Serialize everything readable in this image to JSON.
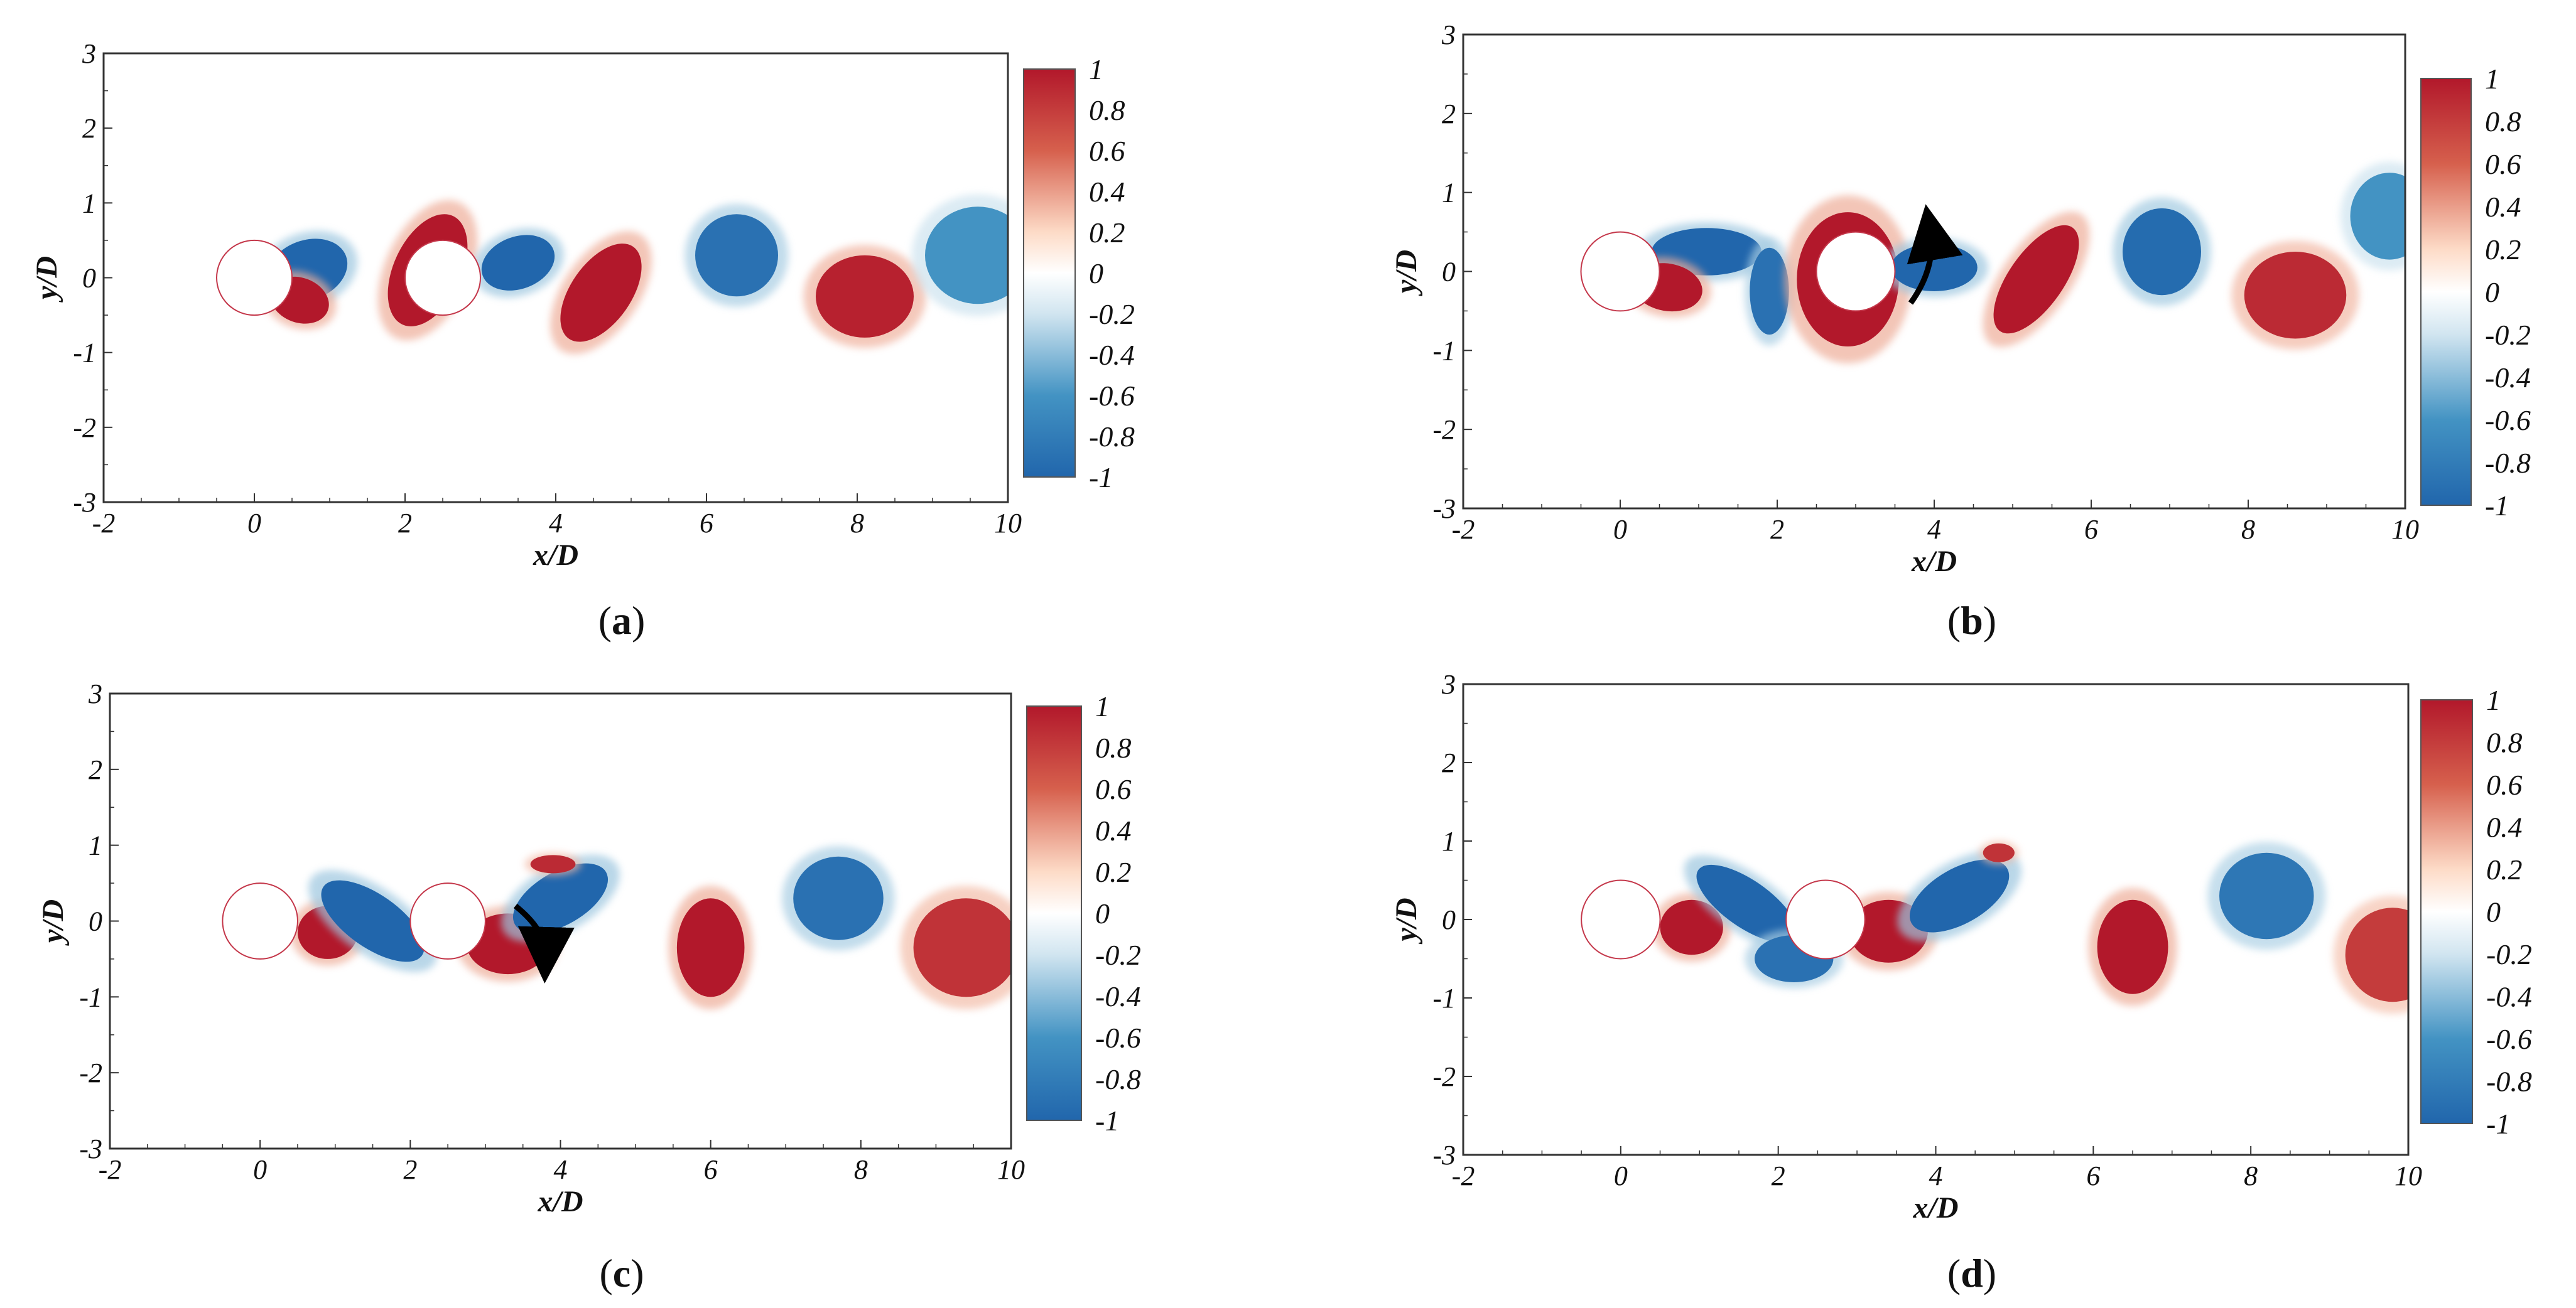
{
  "chart_data": [
    {
      "type": "heatmap",
      "panel_label": "a",
      "xlabel": "x/D",
      "ylabel": "y/D",
      "xlim": [
        -2,
        10
      ],
      "ylim": [
        -3,
        3
      ],
      "x_ticks": [
        -2,
        0,
        2,
        4,
        6,
        8,
        10
      ],
      "y_ticks": [
        -3,
        -2,
        -1,
        0,
        1,
        2,
        3
      ],
      "colorbar": {
        "range": [
          -1,
          1
        ],
        "ticks": [
          1,
          0.8,
          0.6,
          0.4,
          0.2,
          0,
          -0.2,
          -0.4,
          -0.6,
          -0.8,
          -1
        ]
      },
      "cylinders": [
        {
          "x": 0,
          "y": 0,
          "d": 1
        },
        {
          "x": 2.5,
          "y": 0,
          "d": 1
        }
      ],
      "vortices": [
        {
          "x": 0.7,
          "y": 0.1,
          "rx": 0.55,
          "ry": 0.4,
          "rot": -20,
          "sign": -1,
          "strength": 1.0
        },
        {
          "x": 0.6,
          "y": -0.3,
          "rx": 0.4,
          "ry": 0.3,
          "rot": 20,
          "sign": 1,
          "strength": 1.0
        },
        {
          "x": 2.3,
          "y": 0.1,
          "rx": 0.45,
          "ry": 0.8,
          "rot": 25,
          "sign": 1,
          "strength": 1.0
        },
        {
          "x": 3.5,
          "y": 0.2,
          "rx": 0.5,
          "ry": 0.35,
          "rot": -20,
          "sign": -1,
          "strength": 1.0
        },
        {
          "x": 4.6,
          "y": -0.2,
          "rx": 0.4,
          "ry": 0.75,
          "rot": 35,
          "sign": 1,
          "strength": 1.0
        },
        {
          "x": 6.4,
          "y": 0.3,
          "rx": 0.55,
          "ry": 0.55,
          "rot": 0,
          "sign": -1,
          "strength": 0.9
        },
        {
          "x": 8.1,
          "y": -0.25,
          "rx": 0.65,
          "ry": 0.55,
          "rot": 0,
          "sign": 1,
          "strength": 0.95
        },
        {
          "x": 9.6,
          "y": 0.3,
          "rx": 0.7,
          "ry": 0.65,
          "rot": 0,
          "sign": -1,
          "strength": 0.6
        }
      ],
      "arrow": null
    },
    {
      "type": "heatmap",
      "panel_label": "b",
      "xlabel": "x/D",
      "ylabel": "y/D",
      "xlim": [
        -2,
        10
      ],
      "ylim": [
        -3,
        3
      ],
      "x_ticks": [
        -2,
        0,
        2,
        4,
        6,
        8,
        10
      ],
      "y_ticks": [
        -3,
        -2,
        -1,
        0,
        1,
        2,
        3
      ],
      "colorbar": {
        "range": [
          -1,
          1
        ],
        "ticks": [
          1,
          0.8,
          0.6,
          0.4,
          0.2,
          0,
          -0.2,
          -0.4,
          -0.6,
          -0.8,
          -1
        ]
      },
      "cylinders": [
        {
          "x": 0,
          "y": 0,
          "d": 1
        },
        {
          "x": 3,
          "y": 0,
          "d": 1
        }
      ],
      "vortices": [
        {
          "x": 1.1,
          "y": 0.25,
          "rx": 0.7,
          "ry": 0.3,
          "rot": 0,
          "sign": -1,
          "strength": 1.0
        },
        {
          "x": 0.6,
          "y": -0.2,
          "rx": 0.45,
          "ry": 0.3,
          "rot": 10,
          "sign": 1,
          "strength": 1.0
        },
        {
          "x": 1.9,
          "y": -0.25,
          "rx": 0.25,
          "ry": 0.55,
          "rot": 0,
          "sign": -1,
          "strength": 0.9
        },
        {
          "x": 2.9,
          "y": -0.1,
          "rx": 0.65,
          "ry": 0.85,
          "rot": 0,
          "sign": 1,
          "strength": 1.0
        },
        {
          "x": 4.0,
          "y": 0.05,
          "rx": 0.55,
          "ry": 0.3,
          "rot": 0,
          "sign": -1,
          "strength": 1.0
        },
        {
          "x": 5.3,
          "y": -0.1,
          "rx": 0.35,
          "ry": 0.8,
          "rot": 35,
          "sign": 1,
          "strength": 1.0
        },
        {
          "x": 6.9,
          "y": 0.25,
          "rx": 0.5,
          "ry": 0.55,
          "rot": 0,
          "sign": -1,
          "strength": 0.95
        },
        {
          "x": 8.6,
          "y": -0.3,
          "rx": 0.65,
          "ry": 0.55,
          "rot": 0,
          "sign": 1,
          "strength": 0.9
        },
        {
          "x": 9.8,
          "y": 0.7,
          "rx": 0.5,
          "ry": 0.55,
          "rot": 0,
          "sign": -1,
          "strength": 0.6
        }
      ],
      "arrow": {
        "from": [
          3.7,
          -0.4
        ],
        "to": [
          3.95,
          0.5
        ]
      }
    },
    {
      "type": "heatmap",
      "panel_label": "c",
      "xlabel": "x/D",
      "ylabel": "y/D",
      "xlim": [
        -2,
        10
      ],
      "ylim": [
        -3,
        3
      ],
      "x_ticks": [
        -2,
        0,
        2,
        4,
        6,
        8,
        10
      ],
      "y_ticks": [
        -3,
        -2,
        -1,
        0,
        1,
        2,
        3
      ],
      "colorbar": {
        "range": [
          -1,
          1
        ],
        "ticks": [
          1,
          0.8,
          0.6,
          0.4,
          0.2,
          0,
          -0.2,
          -0.4,
          -0.6,
          -0.8,
          -1
        ]
      },
      "cylinders": [
        {
          "x": 0,
          "y": 0,
          "d": 1
        },
        {
          "x": 2.5,
          "y": 0,
          "d": 1
        }
      ],
      "vortices": [
        {
          "x": 0.9,
          "y": -0.15,
          "rx": 0.4,
          "ry": 0.35,
          "rot": 0,
          "sign": 1,
          "strength": 1.0
        },
        {
          "x": 1.5,
          "y": 0.0,
          "rx": 0.8,
          "ry": 0.35,
          "rot": 35,
          "sign": -1,
          "strength": 1.0
        },
        {
          "x": 3.3,
          "y": -0.3,
          "rx": 0.55,
          "ry": 0.4,
          "rot": 0,
          "sign": 1,
          "strength": 1.0
        },
        {
          "x": 4.0,
          "y": 0.3,
          "rx": 0.7,
          "ry": 0.35,
          "rot": -30,
          "sign": -1,
          "strength": 1.0
        },
        {
          "x": 3.9,
          "y": 0.75,
          "rx": 0.3,
          "ry": 0.12,
          "rot": 0,
          "sign": 1,
          "strength": 0.9
        },
        {
          "x": 6.0,
          "y": -0.35,
          "rx": 0.45,
          "ry": 0.65,
          "rot": 0,
          "sign": 1,
          "strength": 1.0
        },
        {
          "x": 7.7,
          "y": 0.3,
          "rx": 0.6,
          "ry": 0.55,
          "rot": 0,
          "sign": -1,
          "strength": 0.9
        },
        {
          "x": 9.4,
          "y": -0.35,
          "rx": 0.7,
          "ry": 0.65,
          "rot": 0,
          "sign": 1,
          "strength": 0.85
        }
      ],
      "arrow": {
        "from": [
          3.4,
          0.2
        ],
        "to": [
          3.8,
          -0.45
        ]
      }
    },
    {
      "type": "heatmap",
      "panel_label": "d",
      "xlabel": "x/D",
      "ylabel": "y/D",
      "xlim": [
        -2,
        10
      ],
      "ylim": [
        -3,
        3
      ],
      "x_ticks": [
        -2,
        0,
        2,
        4,
        6,
        8,
        10
      ],
      "y_ticks": [
        -3,
        -2,
        -1,
        0,
        1,
        2,
        3
      ],
      "colorbar": {
        "range": [
          -1,
          1
        ],
        "ticks": [
          1,
          0.8,
          0.6,
          0.4,
          0.2,
          0,
          -0.2,
          -0.4,
          -0.6,
          -0.8,
          -1
        ]
      },
      "cylinders": [
        {
          "x": 0,
          "y": 0,
          "d": 1
        },
        {
          "x": 2.6,
          "y": 0,
          "d": 1
        }
      ],
      "vortices": [
        {
          "x": 0.9,
          "y": -0.1,
          "rx": 0.4,
          "ry": 0.35,
          "rot": 0,
          "sign": 1,
          "strength": 1.0
        },
        {
          "x": 1.6,
          "y": 0.2,
          "rx": 0.75,
          "ry": 0.3,
          "rot": 35,
          "sign": -1,
          "strength": 1.0
        },
        {
          "x": 2.2,
          "y": -0.5,
          "rx": 0.5,
          "ry": 0.3,
          "rot": 0,
          "sign": -1,
          "strength": 0.9
        },
        {
          "x": 3.4,
          "y": -0.15,
          "rx": 0.5,
          "ry": 0.4,
          "rot": 0,
          "sign": 1,
          "strength": 1.0
        },
        {
          "x": 4.3,
          "y": 0.3,
          "rx": 0.7,
          "ry": 0.35,
          "rot": -30,
          "sign": -1,
          "strength": 1.0
        },
        {
          "x": 4.8,
          "y": 0.85,
          "rx": 0.2,
          "ry": 0.12,
          "rot": 0,
          "sign": 1,
          "strength": 0.85
        },
        {
          "x": 6.5,
          "y": -0.35,
          "rx": 0.45,
          "ry": 0.6,
          "rot": 0,
          "sign": 1,
          "strength": 1.0
        },
        {
          "x": 8.2,
          "y": 0.3,
          "rx": 0.6,
          "ry": 0.55,
          "rot": 0,
          "sign": -1,
          "strength": 0.85
        },
        {
          "x": 9.8,
          "y": -0.45,
          "rx": 0.6,
          "ry": 0.6,
          "rot": 0,
          "sign": 1,
          "strength": 0.8
        }
      ],
      "arrow": null
    }
  ],
  "colors": {
    "positive": "#b2182b",
    "negative": "#2166ac",
    "neutral": "#ffffff"
  }
}
